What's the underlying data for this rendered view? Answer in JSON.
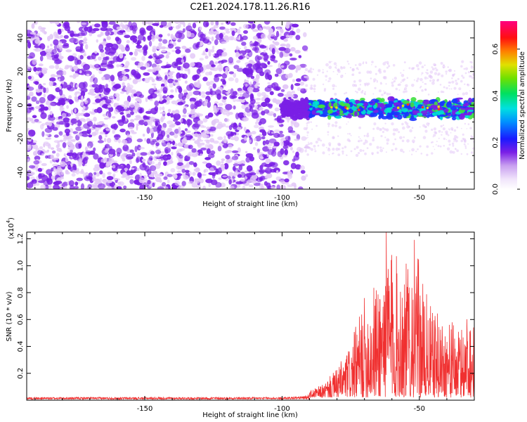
{
  "title": "C2E1.2024.178.11.26.R16",
  "chart_data": [
    {
      "type": "heatmap",
      "xlabel": "Height of straight line (km)",
      "ylabel": "Frequency (Hz)",
      "xlim": [
        -193,
        -30
      ],
      "ylim": [
        -50,
        50
      ],
      "x_ticks": [
        -150,
        -100,
        -50
      ],
      "y_ticks": [
        -40,
        -20,
        0,
        20,
        40
      ],
      "colorbar": {
        "label": "Normalized spectral amplitude",
        "range": [
          0.0,
          0.72
        ],
        "ticks": [
          0.0,
          0.2,
          0.4,
          0.6
        ]
      },
      "colors": {
        "noise_light": "#e3c9f7",
        "noise_dark": "#7a1fe6",
        "signal_blue": "#1a35ff",
        "signal_cyan": "#00e0d0",
        "signal_green": "#40e040"
      },
      "regions": [
        {
          "x_range": [
            -193,
            -92
          ],
          "y_range": [
            -50,
            50
          ],
          "amplitude": "low, noise-dominated"
        },
        {
          "x_range": [
            -92,
            -30
          ],
          "y_range": [
            -15,
            8
          ],
          "amplitude": "high, narrow band centered near 0 Hz"
        }
      ]
    },
    {
      "type": "line",
      "xlabel": "Height of straight line (km)",
      "ylabel": "SNR (10 * v/v)",
      "y_scale_label": "(x10",
      "y_scale_exp": "4",
      "xlim": [
        -193,
        -30
      ],
      "ylim": [
        0,
        1.25
      ],
      "x_ticks": [
        -150,
        -100,
        -50
      ],
      "y_ticks": [
        0.2,
        0.4,
        0.6,
        0.8,
        1.0,
        1.2
      ],
      "line_color": "#f03030",
      "envelope": [
        {
          "x": -193,
          "y": 0.02
        },
        {
          "x": -100,
          "y": 0.02
        },
        {
          "x": -92,
          "y": 0.03
        },
        {
          "x": -85,
          "y": 0.1
        },
        {
          "x": -80,
          "y": 0.22
        },
        {
          "x": -75,
          "y": 0.4
        },
        {
          "x": -70,
          "y": 0.75
        },
        {
          "x": -65,
          "y": 0.9
        },
        {
          "x": -62,
          "y": 1.25
        },
        {
          "x": -58,
          "y": 1.05
        },
        {
          "x": -55,
          "y": 1.0
        },
        {
          "x": -52,
          "y": 1.2
        },
        {
          "x": -48,
          "y": 0.8
        },
        {
          "x": -45,
          "y": 0.65
        },
        {
          "x": -40,
          "y": 0.6
        },
        {
          "x": -35,
          "y": 0.5
        },
        {
          "x": -32,
          "y": 0.75
        },
        {
          "x": -30,
          "y": 0.5
        }
      ]
    }
  ]
}
